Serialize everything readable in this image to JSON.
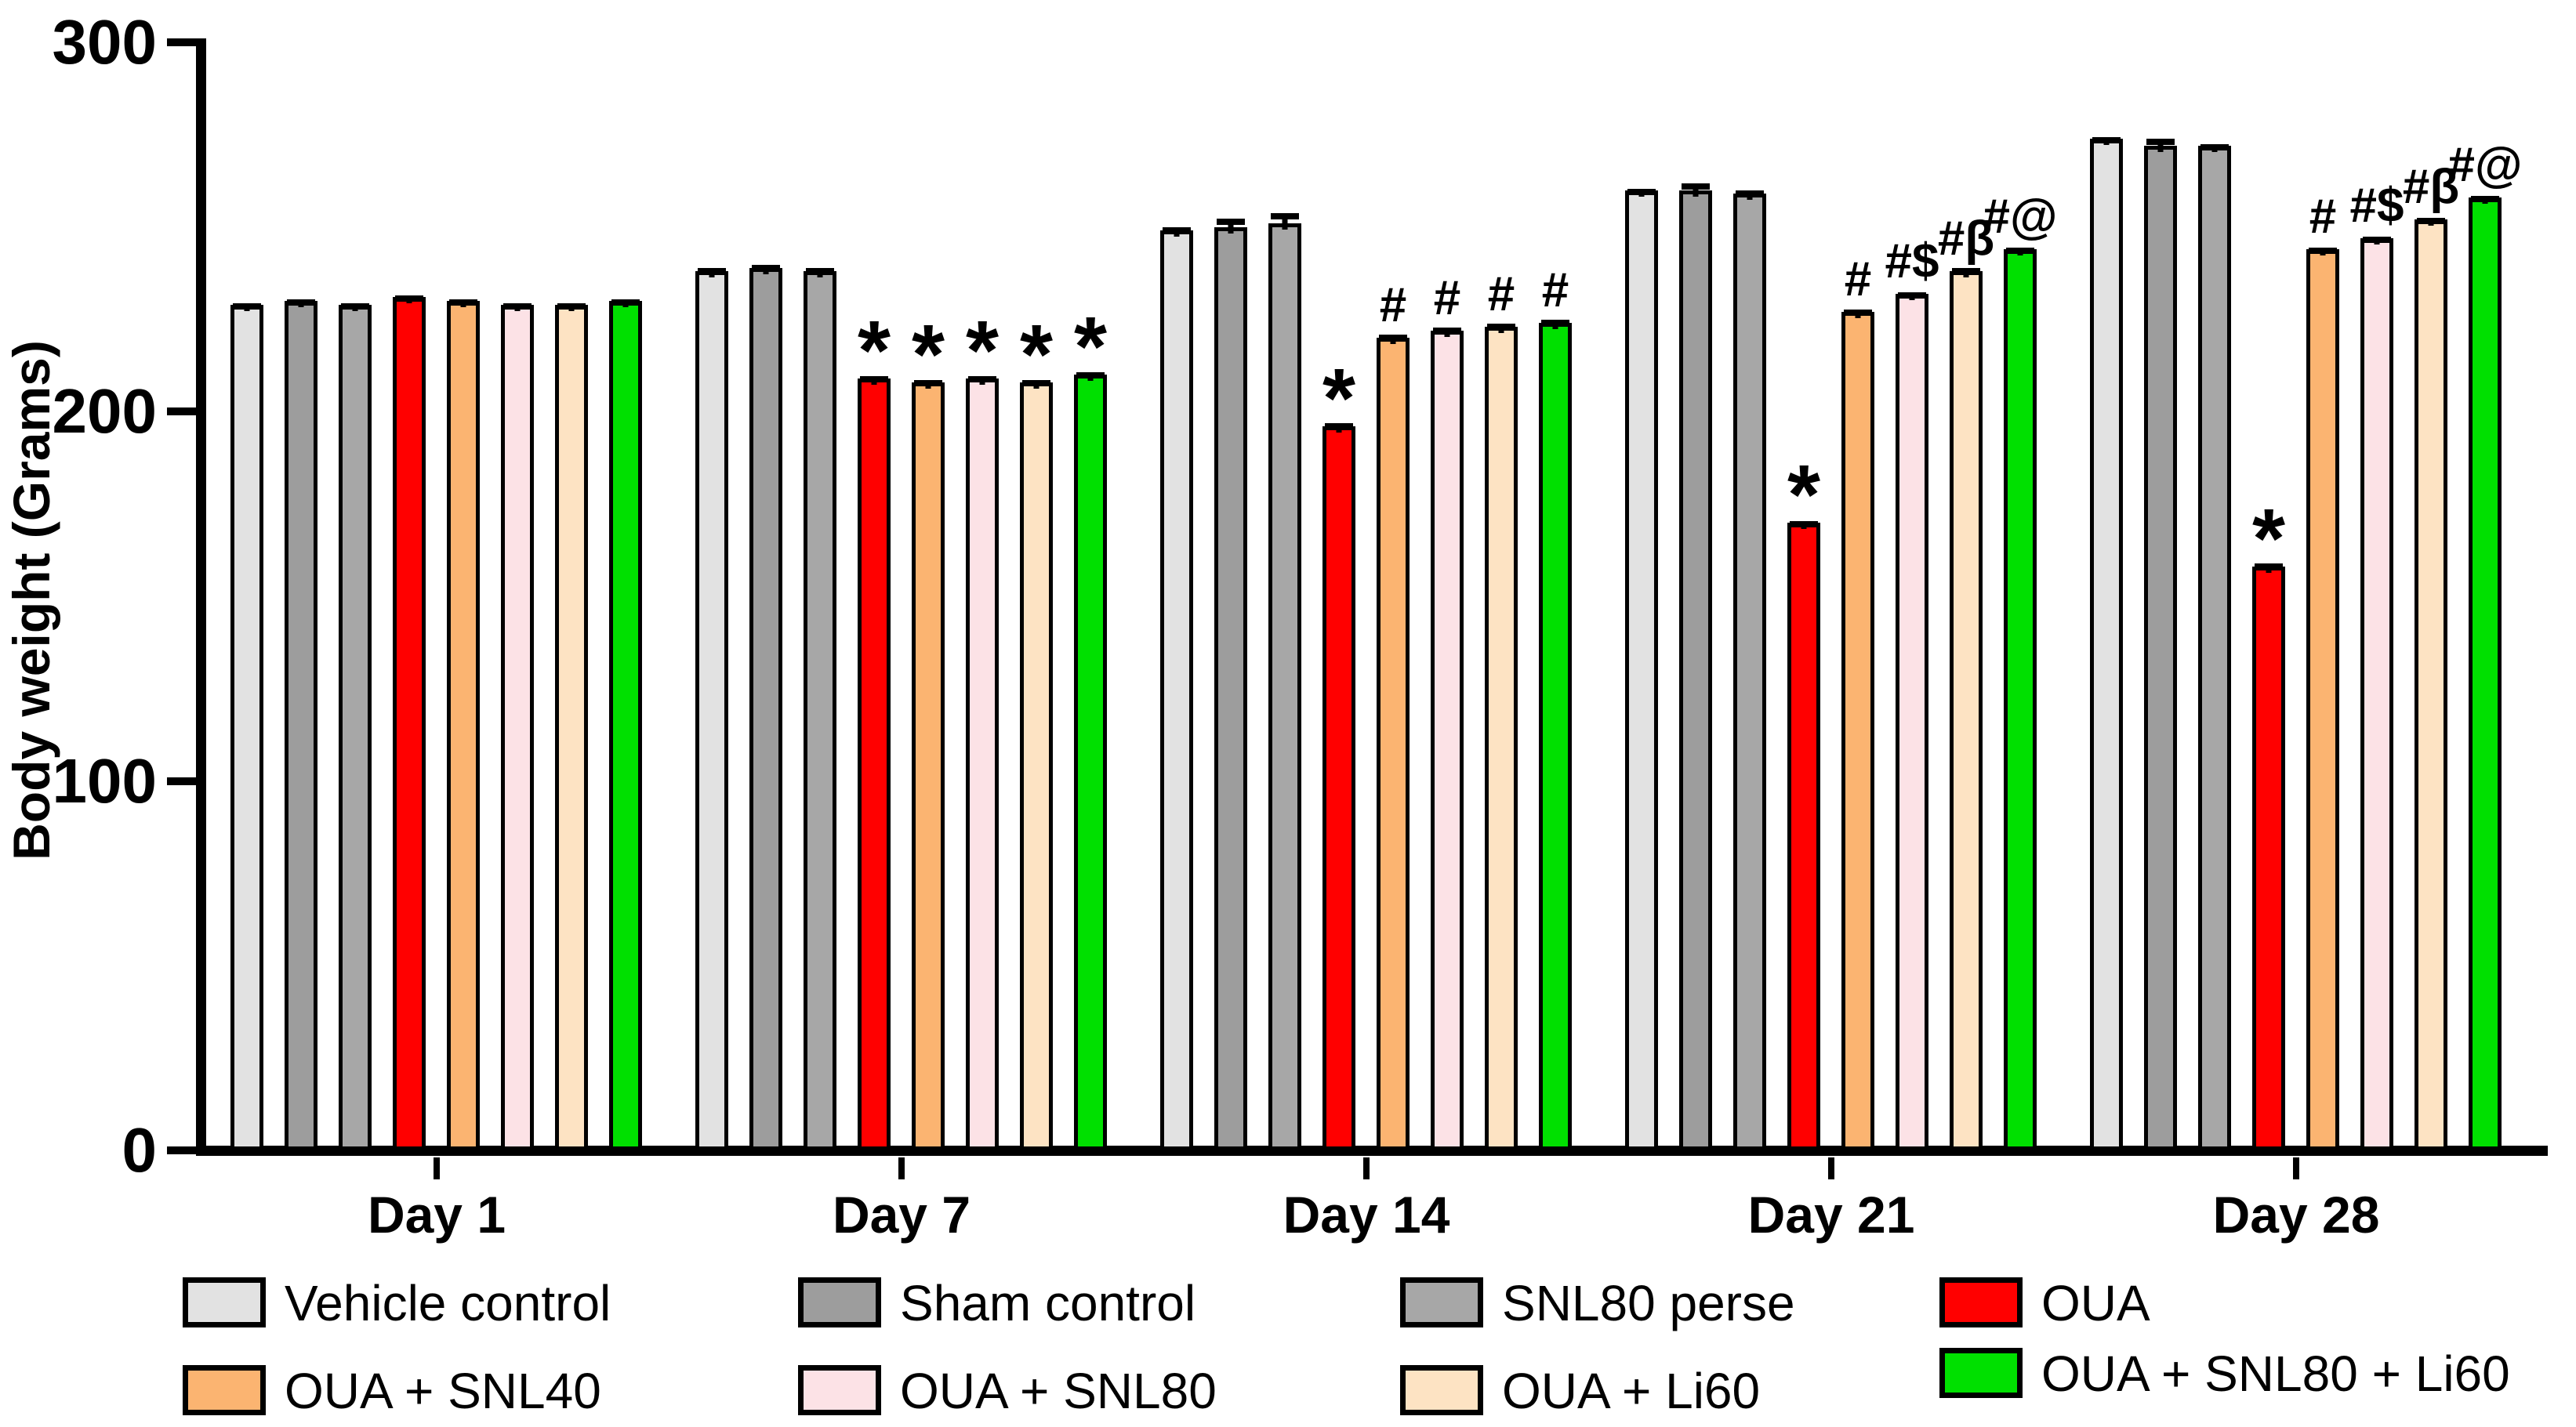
{
  "chart_data": {
    "type": "bar",
    "title": "",
    "xlabel": "",
    "ylabel": "Body weight (Grams)",
    "ylim": [
      0,
      300
    ],
    "yticks": [
      0,
      100,
      200,
      300
    ],
    "grid": false,
    "legend_position": "bottom",
    "categories": [
      "Day 1",
      "Day 7",
      "Day 14",
      "Day 21",
      "Day 28"
    ],
    "series": [
      {
        "name": "Vehicle control",
        "color": "#e2e2e2",
        "values": [
          229,
          238,
          249,
          260,
          274
        ],
        "sem": [
          1,
          1.5,
          1.5,
          1,
          1
        ],
        "annotations": [
          "",
          "",
          "",
          "",
          ""
        ]
      },
      {
        "name": "Sham control",
        "color": "#9d9d9d",
        "values": [
          230,
          239,
          250,
          260,
          272
        ],
        "sem": [
          1,
          1.5,
          3,
          2.5,
          2.5
        ],
        "annotations": [
          "",
          "",
          "",
          "",
          ""
        ]
      },
      {
        "name": "SNL80 perse",
        "color": "#a7a7a7",
        "values": [
          229,
          238,
          251,
          259,
          272
        ],
        "sem": [
          1,
          1.5,
          3.5,
          1.5,
          1
        ],
        "annotations": [
          "",
          "",
          "",
          "",
          ""
        ]
      },
      {
        "name": "OUA",
        "color": "#ff0000",
        "values": [
          231,
          209,
          196,
          170,
          158
        ],
        "sem": [
          1,
          1.2,
          1.5,
          1,
          1.5
        ],
        "annotations": [
          "",
          "*",
          "*",
          "*",
          "*"
        ]
      },
      {
        "name": "OUA + SNL40",
        "color": "#fbb471",
        "values": [
          230,
          208,
          220,
          227,
          244
        ],
        "sem": [
          1,
          1.2,
          1.5,
          1.2,
          1
        ],
        "annotations": [
          "",
          "*",
          "#",
          "#",
          "#"
        ]
      },
      {
        "name": "OUA + SNL80",
        "color": "#fce2e6",
        "values": [
          229,
          209,
          222,
          232,
          247
        ],
        "sem": [
          1,
          1.2,
          1.5,
          1,
          1
        ],
        "annotations": [
          "",
          "*",
          "#",
          "#$",
          "#$"
        ]
      },
      {
        "name": "OUA + Li60",
        "color": "#fde3c3",
        "values": [
          229,
          208,
          223,
          238,
          252
        ],
        "sem": [
          1,
          1.2,
          1.5,
          1.5,
          1
        ],
        "annotations": [
          "",
          "*",
          "#",
          "#β",
          "#β"
        ]
      },
      {
        "name": "OUA + SNL80 + Li60",
        "color": "#00e000",
        "values": [
          230,
          210,
          224,
          244,
          258
        ],
        "sem": [
          1,
          1.2,
          1.5,
          1,
          1
        ],
        "annotations": [
          "",
          "*",
          "#",
          "#@",
          "#@"
        ]
      }
    ],
    "legend": {
      "rows": [
        [
          0,
          1,
          2,
          3
        ],
        [
          4,
          5,
          6,
          7
        ]
      ]
    }
  }
}
